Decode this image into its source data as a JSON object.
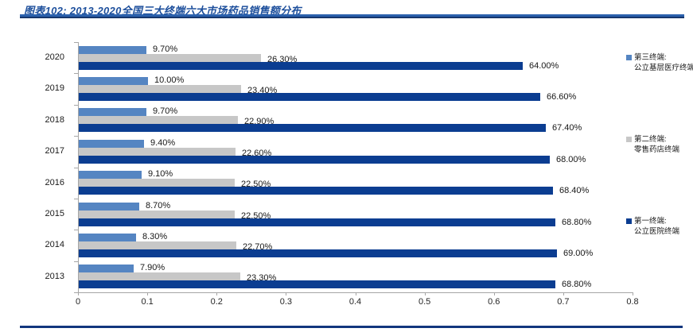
{
  "header": {
    "title": "图表102: 2013-2020全国三大终端六大市场药品销售额分布"
  },
  "colors": {
    "series_third_terminal": "#5585c2",
    "series_second_terminal": "#c7c7c7",
    "series_first_terminal": "#0b3d91",
    "title_text": "#1d4f9c",
    "rule_bright": "#2b61ad",
    "rule_dark": "#16366d",
    "axis": "#a6a6a6"
  },
  "chart_data": {
    "type": "bar",
    "orientation": "horizontal",
    "title": "",
    "xlabel": "",
    "ylabel": "",
    "categories": [
      "2020",
      "2019",
      "2018",
      "2017",
      "2016",
      "2015",
      "2014",
      "2013"
    ],
    "series": [
      {
        "name": "第三终端: 公立基层医疗终端",
        "color": "#5585c2",
        "values_percent": [
          9.7,
          10.0,
          9.7,
          9.4,
          9.1,
          8.7,
          8.3,
          7.9
        ],
        "labels": [
          "9.70%",
          "10.00%",
          "9.70%",
          "9.40%",
          "9.10%",
          "8.70%",
          "8.30%",
          "7.90%"
        ]
      },
      {
        "name": "第二终端: 零售药店终端",
        "color": "#c7c7c7",
        "values_percent": [
          26.3,
          23.4,
          22.9,
          22.6,
          22.5,
          22.5,
          22.7,
          23.3
        ],
        "labels": [
          "26.30%",
          "23.40%",
          "22.90%",
          "22.60%",
          "22.50%",
          "22.50%",
          "22.70%",
          "23.30%"
        ]
      },
      {
        "name": "第一终端: 公立医院终端",
        "color": "#0b3d91",
        "values_percent": [
          64.0,
          66.6,
          67.4,
          68.0,
          68.4,
          68.8,
          69.0,
          68.8
        ],
        "labels": [
          "64.00%",
          "66.60%",
          "67.40%",
          "68.00%",
          "68.40%",
          "68.80%",
          "69.00%",
          "68.80%"
        ]
      }
    ],
    "xticks": [
      "0",
      "0.1",
      "0.2",
      "0.3",
      "0.4",
      "0.5",
      "0.6",
      "0.7",
      "0.8"
    ],
    "xlim": [
      0,
      0.8
    ],
    "grid": false,
    "legend_position": "right"
  },
  "legend": {
    "items": [
      {
        "line1": "第三终端:",
        "line2": "公立基层医疗终端",
        "color": "#5585c2"
      },
      {
        "line1": "第二终端:",
        "line2": "零售药店终端",
        "color": "#c7c7c7"
      },
      {
        "line1": "第一终端:",
        "line2": "公立医院终端",
        "color": "#0b3d91"
      }
    ]
  }
}
